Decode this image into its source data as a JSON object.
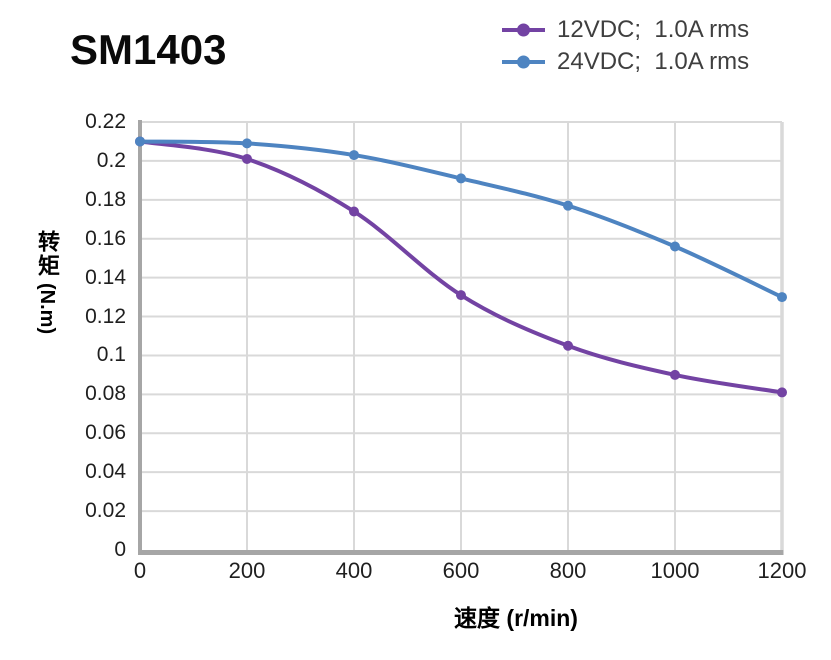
{
  "title": "SM1403",
  "axes": {
    "xlabel": "速度 (r/min)",
    "ylabel_cn": "转矩",
    "ylabel_unit": "(N.m)",
    "x_ticks": [
      "0",
      "200",
      "400",
      "600",
      "800",
      "1000",
      "1200"
    ],
    "y_ticks": [
      "0.22",
      "0.2",
      "0.18",
      "0.16",
      "0.14",
      "0.12",
      "0.1",
      "0.08",
      "0.06",
      "0.04",
      "0.02",
      "0"
    ]
  },
  "chart_data": {
    "type": "line",
    "title": "SM1403",
    "x": [
      0,
      200,
      400,
      600,
      800,
      1000,
      1200
    ],
    "series": [
      {
        "name": "12VDC;  1.0A rms",
        "color": "#7343A3",
        "marker": "circle",
        "values": [
          0.21,
          0.201,
          0.174,
          0.131,
          0.105,
          0.09,
          0.081
        ]
      },
      {
        "name": "24VDC;  1.0A rms",
        "color": "#4E84C1",
        "marker": "circle",
        "values": [
          0.21,
          0.209,
          0.203,
          0.191,
          0.177,
          0.156,
          0.13
        ]
      }
    ],
    "xlabel": "速度 (r/min)",
    "ylabel": "转矩 (N.m)",
    "xlim": [
      0,
      1200
    ],
    "ylim": [
      0,
      0.22
    ],
    "x_tick_step": 200,
    "y_tick_step": 0.02,
    "grid": true,
    "legend_position": "top-right",
    "styles": {
      "grid_color": "#d9d9d9",
      "axis_color": "#a6a6a6",
      "tick_text_color": "#1f1f1f",
      "label_text_color": "#000000",
      "legend_text_color": "#3f3f3f",
      "background": "#ffffff"
    }
  }
}
